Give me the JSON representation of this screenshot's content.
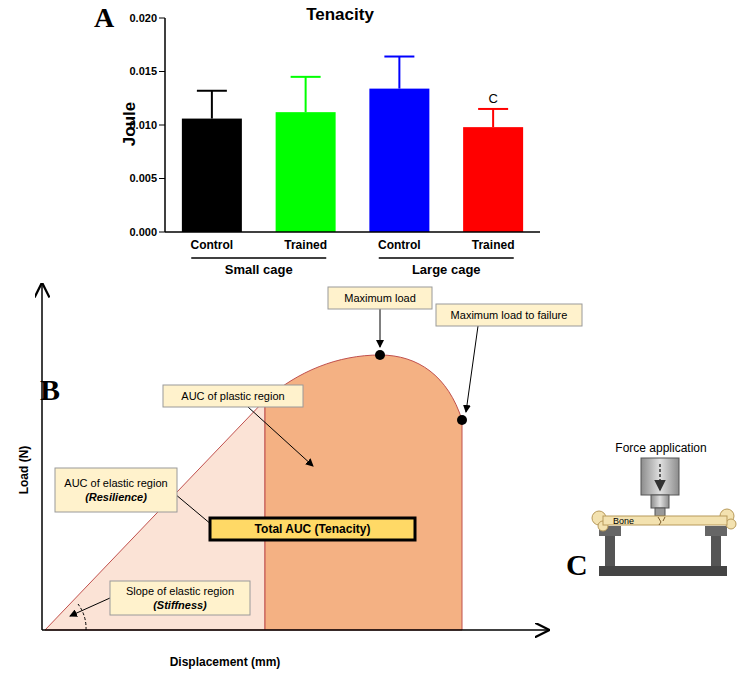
{
  "chart_data": {
    "type": "bar",
    "panel": "A",
    "title": "Tenacity",
    "y_label": "Joule",
    "categories": [
      "Control",
      "Trained",
      "Control",
      "Trained"
    ],
    "groups": [
      "Small cage",
      "Large cage"
    ],
    "values": [
      0.0106,
      0.0112,
      0.0134,
      0.0098
    ],
    "errors": [
      0.0026,
      0.0033,
      0.003,
      0.0017
    ],
    "colors": [
      "#000000",
      "#00ff00",
      "#0000ff",
      "#ff0000"
    ],
    "bar_annotations": [
      null,
      null,
      null,
      "C"
    ],
    "ylim": [
      0,
      0.02
    ],
    "yticks": [
      {
        "value": 0,
        "label": "0.000"
      },
      {
        "value": 0.005,
        "label": "0.005"
      },
      {
        "value": 0.01,
        "label": "0.010"
      },
      {
        "value": 0.015,
        "label": "0.015"
      },
      {
        "value": 0.02,
        "label": "0.020"
      }
    ]
  },
  "diagram": {
    "panel": "B",
    "y_label": "Load (N)",
    "x_label": "Displacement (mm)",
    "labels": {
      "max_load": "Maximum load",
      "max_load_failure": "Maximum load to failure",
      "plastic": "AUC of plastic region",
      "elastic": [
        "AUC of elastic region",
        "(Resilience)"
      ],
      "total": "Total AUC (Tenacity)",
      "slope": [
        "Slope of elastic region",
        "(Stiffness)"
      ]
    }
  },
  "setup": {
    "panel": "C",
    "force": "Force application",
    "bone": "Bone"
  }
}
